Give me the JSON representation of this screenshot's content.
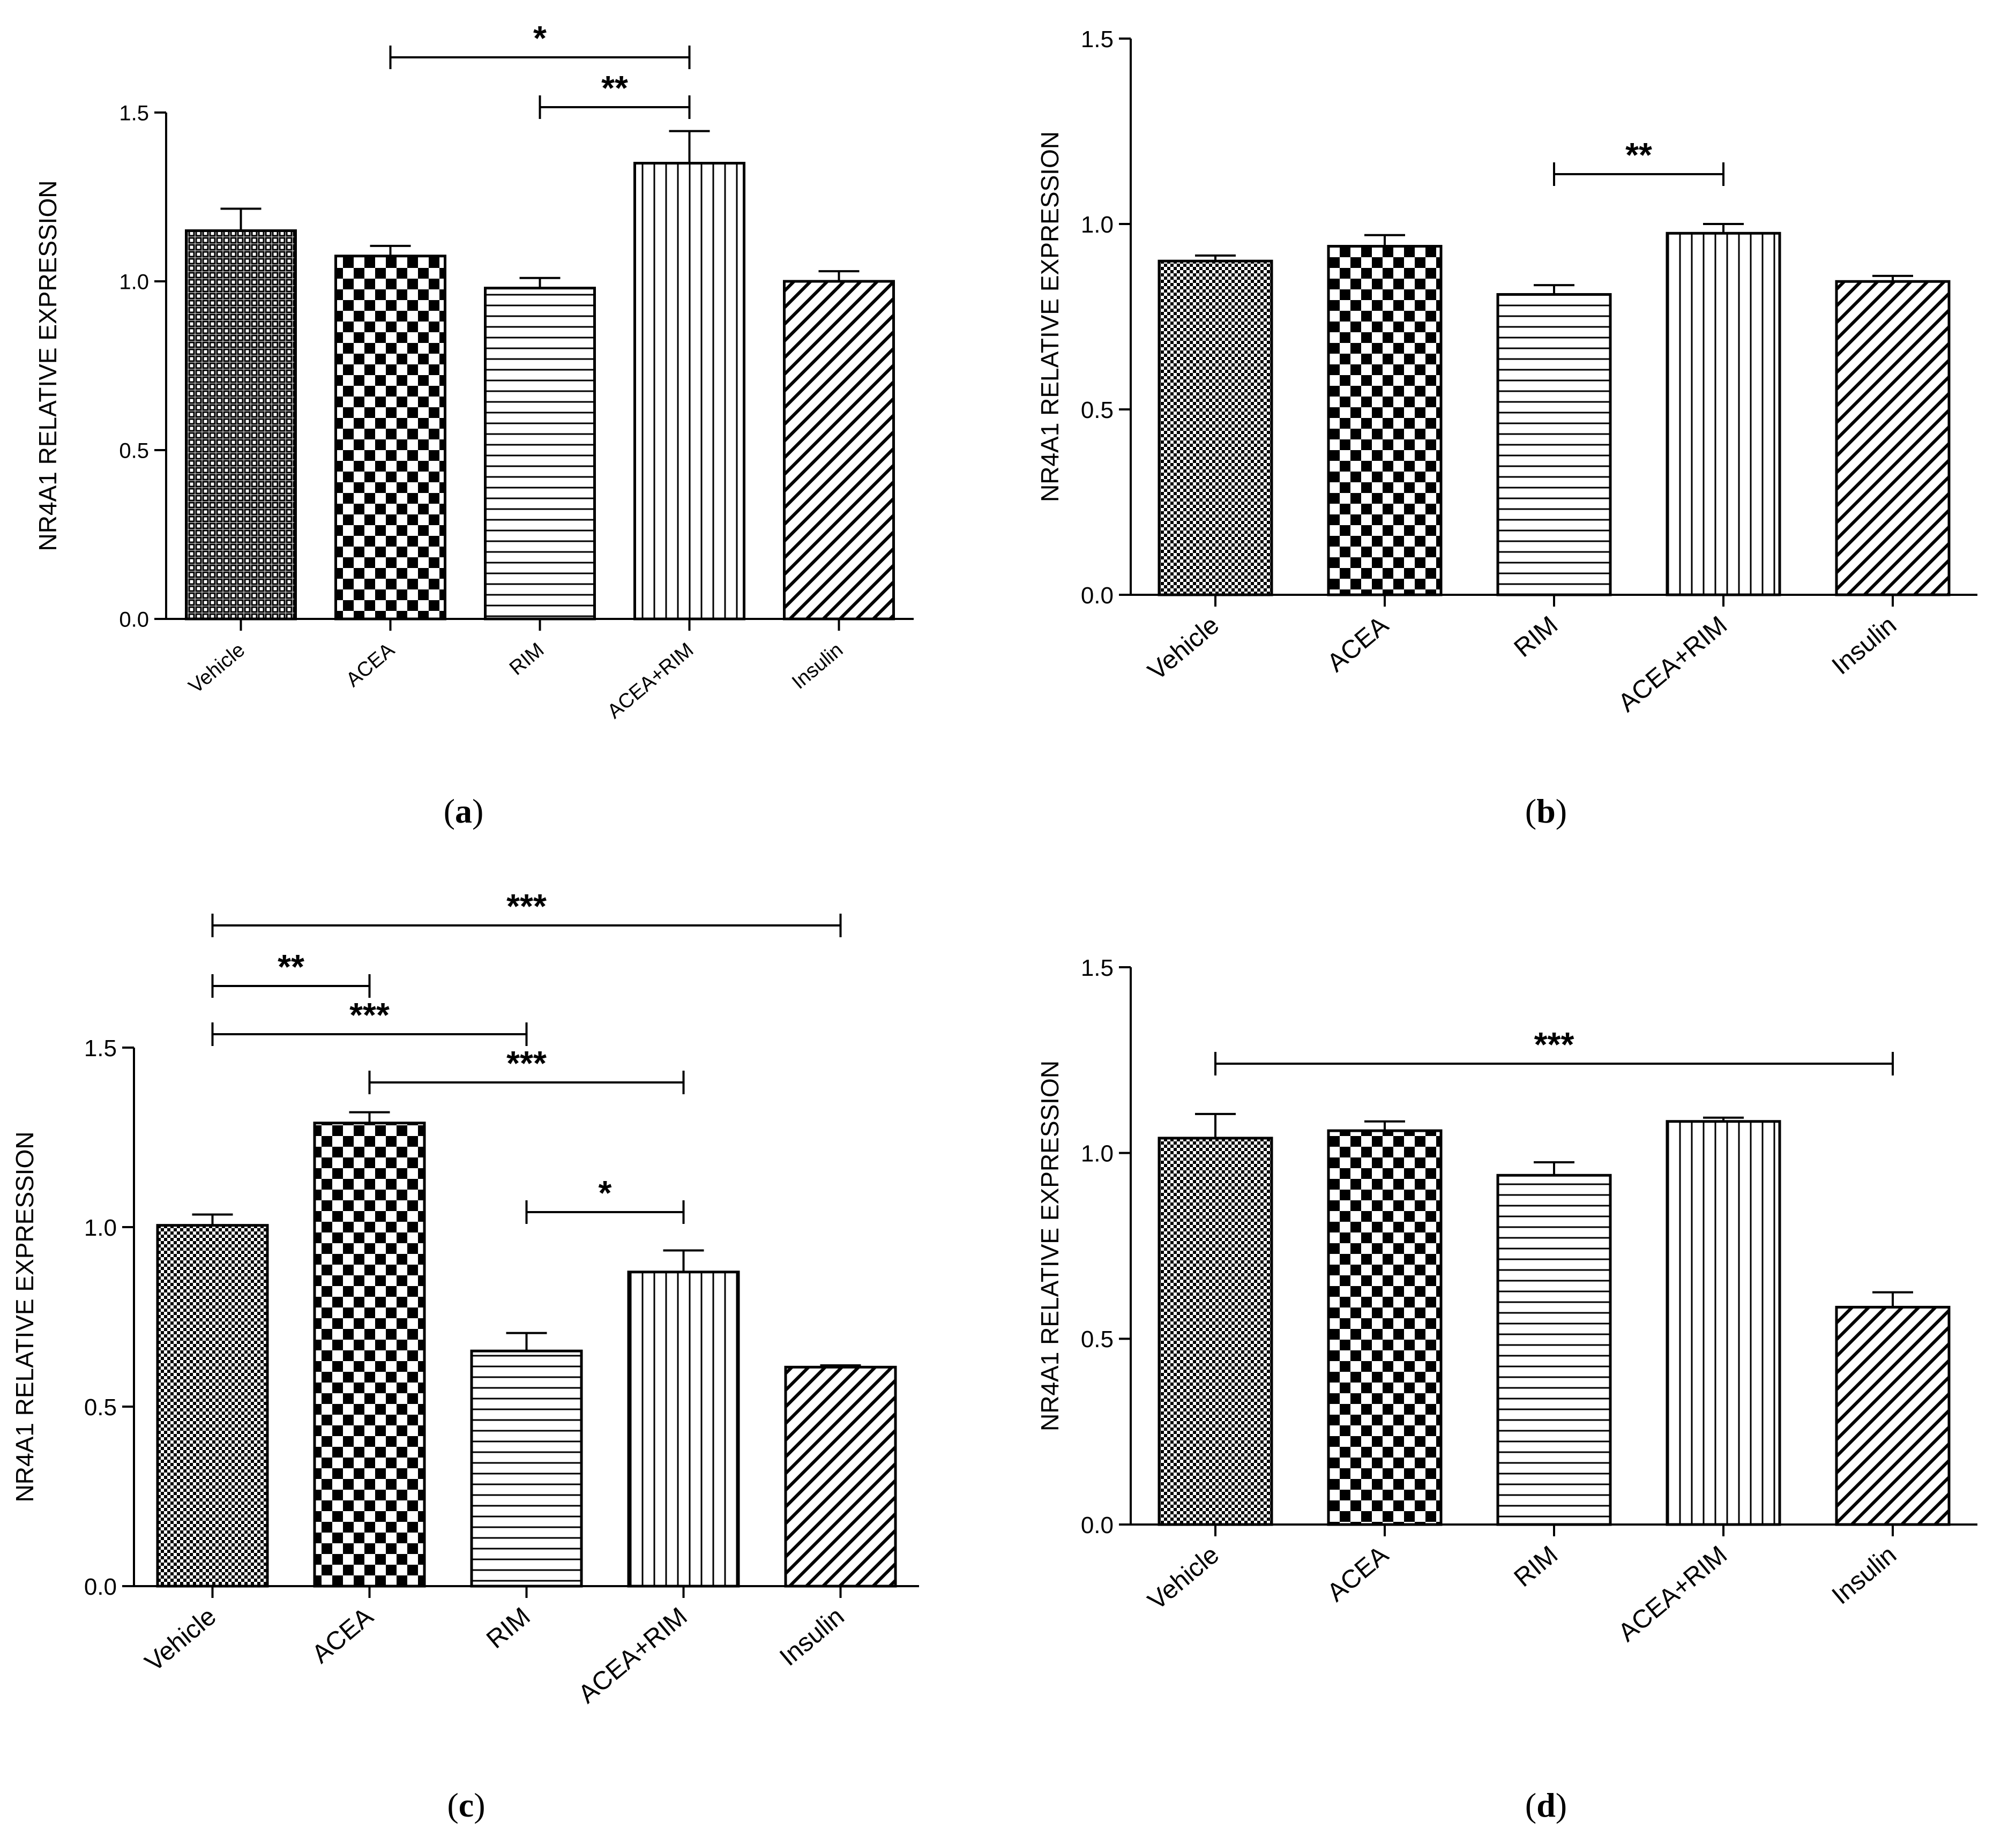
{
  "figure": {
    "panels": [
      "a",
      "b",
      "c",
      "d"
    ]
  },
  "chart_data": [
    {
      "id": "a",
      "panel_label": "(a)",
      "type": "bar",
      "ylabel": "NR4A1 RELATIVE EXPRESSION",
      "ylim": [
        0,
        1.5
      ],
      "yticks": [
        0.0,
        0.5,
        1.0,
        1.5
      ],
      "ytick_labels": [
        "0.0",
        "0.5",
        "1.0",
        "1.5"
      ],
      "categories": [
        "Vehicle",
        "ACEA",
        "RIM",
        "ACEA+RIM",
        "Insulin"
      ],
      "values": [
        1.15,
        1.075,
        0.98,
        1.35,
        1.0
      ],
      "errors": [
        0.065,
        0.03,
        0.03,
        0.095,
        0.03
      ],
      "patterns": [
        "grid",
        "checker",
        "hlines",
        "vlines",
        "diagonal"
      ],
      "significance": [
        {
          "from": 1,
          "to": 3,
          "label": "*"
        },
        {
          "from": 2,
          "to": 3,
          "label": "**"
        }
      ],
      "colors": {
        "bar_stroke": "#000000",
        "fill": "#ffffff"
      }
    },
    {
      "id": "b",
      "panel_label": "(b)",
      "type": "bar",
      "ylabel": "NR4A1 RELATIVE EXPRESSION",
      "ylim": [
        0,
        1.5
      ],
      "yticks": [
        0.0,
        0.5,
        1.0,
        1.5
      ],
      "ytick_labels": [
        "0.0",
        "0.5",
        "1.0",
        "1.5"
      ],
      "categories": [
        "Vehicle",
        "ACEA",
        "RIM",
        "ACEA+RIM",
        "Insulin"
      ],
      "values": [
        0.9,
        0.94,
        0.81,
        0.975,
        0.845
      ],
      "errors": [
        0.015,
        0.03,
        0.025,
        0.025,
        0.015
      ],
      "patterns": [
        "fine-checker",
        "checker",
        "hlines",
        "vlines",
        "diagonal"
      ],
      "significance": [
        {
          "from": 2,
          "to": 3,
          "label": "**"
        }
      ],
      "colors": {
        "bar_stroke": "#000000",
        "fill": "#ffffff"
      }
    },
    {
      "id": "c",
      "panel_label": "(c)",
      "type": "bar",
      "ylabel": "NR4A1 RELATIVE EXPRESSION",
      "ylim": [
        0,
        1.5
      ],
      "yticks": [
        0.0,
        0.5,
        1.0,
        1.5
      ],
      "ytick_labels": [
        "0.0",
        "0.5",
        "1.0",
        "1.5"
      ],
      "categories": [
        "Vehicle",
        "ACEA",
        "RIM",
        "ACEA+RIM",
        "Insulin"
      ],
      "values": [
        1.005,
        1.29,
        0.655,
        0.875,
        0.61
      ],
      "errors": [
        0.03,
        0.03,
        0.05,
        0.06,
        0.005
      ],
      "patterns": [
        "fine-checker",
        "checker",
        "hlines",
        "vlines",
        "diagonal"
      ],
      "significance": [
        {
          "from": 0,
          "to": 4,
          "label": "***"
        },
        {
          "from": 0,
          "to": 1,
          "label": "**"
        },
        {
          "from": 0,
          "to": 2,
          "label": "***"
        },
        {
          "from": 1,
          "to": 3,
          "label": "***"
        },
        {
          "from": 2,
          "to": 3,
          "label": "*"
        }
      ],
      "colors": {
        "bar_stroke": "#000000",
        "fill": "#ffffff"
      }
    },
    {
      "id": "d",
      "panel_label": "(d)",
      "type": "bar",
      "ylabel": "NR4A1 RELATIVE EXPRESSION",
      "ylim": [
        0,
        1.5
      ],
      "yticks": [
        0.0,
        0.5,
        1.0,
        1.5
      ],
      "ytick_labels": [
        "0.0",
        "0.5",
        "1.0",
        "1.5"
      ],
      "categories": [
        "Vehicle",
        "ACEA",
        "RIM",
        "ACEA+RIM",
        "Insulin"
      ],
      "values": [
        1.04,
        1.06,
        0.94,
        1.085,
        0.585
      ],
      "errors": [
        0.065,
        0.025,
        0.035,
        0.01,
        0.04
      ],
      "patterns": [
        "fine-checker",
        "checker",
        "hlines",
        "vlines",
        "diagonal"
      ],
      "significance": [
        {
          "from": 0,
          "to": 4,
          "label": "***"
        }
      ],
      "colors": {
        "bar_stroke": "#000000",
        "fill": "#ffffff"
      }
    }
  ]
}
